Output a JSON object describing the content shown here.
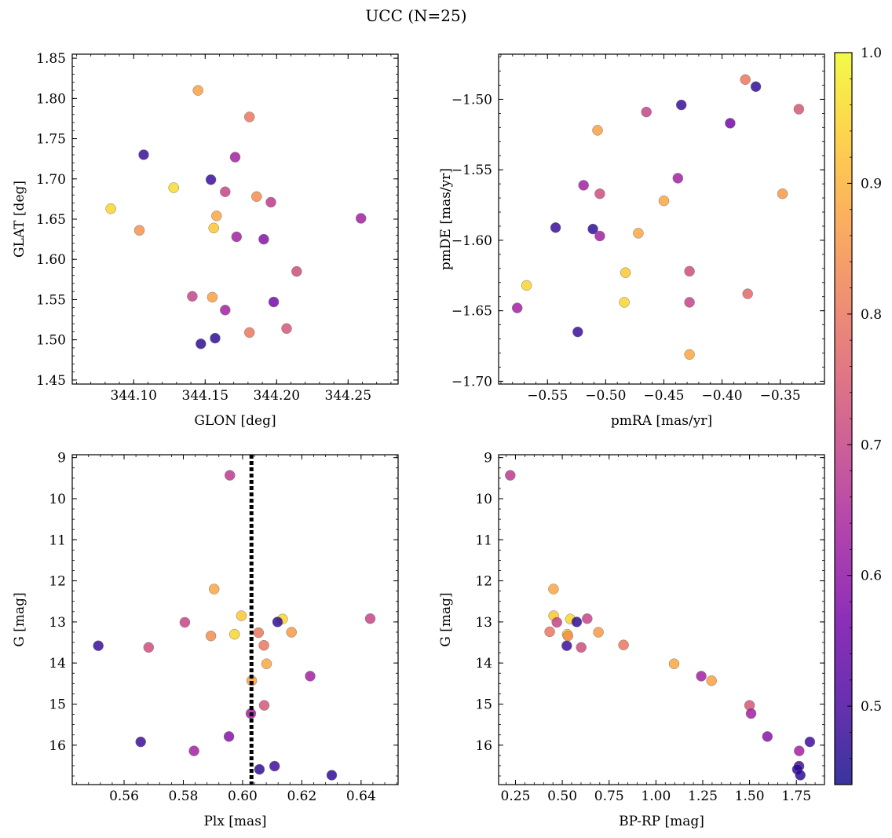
{
  "figure": {
    "title": "UCC (N=25)"
  },
  "colorbar": {
    "cmap": "plasma",
    "vmin": 0.44,
    "vmax": 1.0,
    "ticks": [
      0.5,
      0.6,
      0.7,
      0.8,
      0.9,
      1.0
    ],
    "tick_labels": [
      "0.5",
      "0.6",
      "0.7",
      "0.8",
      "0.9",
      "1.0"
    ],
    "colors": [
      "#0d0887",
      "#46039f",
      "#7201a8",
      "#9c179e",
      "#bd3786",
      "#d8576b",
      "#ed7953",
      "#fb9f3a",
      "#fdca26",
      "#f0f921"
    ]
  },
  "chart_data": [
    {
      "type": "scatter",
      "xlabel": "GLON [deg]",
      "ylabel": "GLAT [deg]",
      "xlim": [
        344.057,
        344.285
      ],
      "ylim": [
        1.445,
        1.855
      ],
      "xticks": [
        344.1,
        344.15,
        344.2,
        344.25
      ],
      "xtick_labels": [
        "344.10",
        "344.15",
        "344.20",
        "344.25"
      ],
      "yticks": [
        1.45,
        1.5,
        1.55,
        1.6,
        1.65,
        1.7,
        1.75,
        1.8,
        1.85
      ],
      "ytick_labels": [
        "1.45",
        "1.50",
        "1.55",
        "1.60",
        "1.65",
        "1.70",
        "1.75",
        "1.80",
        "1.85"
      ],
      "invert_y": false,
      "grid": false,
      "points": [
        {
          "x": 344.145,
          "y": 1.81,
          "c": 0.87
        },
        {
          "x": 344.181,
          "y": 1.777,
          "c": 0.8
        },
        {
          "x": 344.107,
          "y": 1.73,
          "c": 0.48
        },
        {
          "x": 344.171,
          "y": 1.727,
          "c": 0.63
        },
        {
          "x": 344.154,
          "y": 1.699,
          "c": 0.48
        },
        {
          "x": 344.128,
          "y": 1.689,
          "c": 0.96
        },
        {
          "x": 344.164,
          "y": 1.684,
          "c": 0.7
        },
        {
          "x": 344.186,
          "y": 1.678,
          "c": 0.84
        },
        {
          "x": 344.196,
          "y": 1.671,
          "c": 0.68
        },
        {
          "x": 344.084,
          "y": 1.663,
          "c": 0.95
        },
        {
          "x": 344.158,
          "y": 1.654,
          "c": 0.88
        },
        {
          "x": 344.259,
          "y": 1.651,
          "c": 0.63
        },
        {
          "x": 344.156,
          "y": 1.639,
          "c": 0.93
        },
        {
          "x": 344.104,
          "y": 1.636,
          "c": 0.85
        },
        {
          "x": 344.172,
          "y": 1.628,
          "c": 0.63
        },
        {
          "x": 344.191,
          "y": 1.625,
          "c": 0.59
        },
        {
          "x": 344.214,
          "y": 1.585,
          "c": 0.72
        },
        {
          "x": 344.141,
          "y": 1.554,
          "c": 0.7
        },
        {
          "x": 344.155,
          "y": 1.553,
          "c": 0.87
        },
        {
          "x": 344.198,
          "y": 1.547,
          "c": 0.56
        },
        {
          "x": 344.164,
          "y": 1.537,
          "c": 0.63
        },
        {
          "x": 344.207,
          "y": 1.514,
          "c": 0.74
        },
        {
          "x": 344.181,
          "y": 1.509,
          "c": 0.8
        },
        {
          "x": 344.157,
          "y": 1.502,
          "c": 0.47
        },
        {
          "x": 344.147,
          "y": 1.495,
          "c": 0.47
        }
      ]
    },
    {
      "type": "scatter",
      "xlabel": "pmRA [mas/yr]",
      "ylabel": "pmDE [mas/yr]",
      "xlim": [
        -0.592,
        -0.312
      ],
      "ylim": [
        -1.702,
        -1.468
      ],
      "xticks": [
        -0.55,
        -0.5,
        -0.45,
        -0.4,
        -0.35
      ],
      "xtick_labels": [
        "−0.55",
        "−0.50",
        "−0.45",
        "−0.40",
        "−0.35"
      ],
      "yticks": [
        -1.7,
        -1.65,
        -1.6,
        -1.55,
        -1.5
      ],
      "ytick_labels": [
        "−1.70",
        "−1.65",
        "−1.60",
        "−1.55",
        "−1.50"
      ],
      "invert_y": false,
      "grid": false,
      "points": [
        {
          "x": -0.38,
          "y": -1.486,
          "c": 0.8
        },
        {
          "x": -0.371,
          "y": -1.491,
          "c": 0.47
        },
        {
          "x": -0.435,
          "y": -1.504,
          "c": 0.48
        },
        {
          "x": -0.334,
          "y": -1.507,
          "c": 0.74
        },
        {
          "x": -0.465,
          "y": -1.509,
          "c": 0.7
        },
        {
          "x": -0.393,
          "y": -1.517,
          "c": 0.56
        },
        {
          "x": -0.507,
          "y": -1.522,
          "c": 0.87
        },
        {
          "x": -0.438,
          "y": -1.556,
          "c": 0.63
        },
        {
          "x": -0.519,
          "y": -1.561,
          "c": 0.63
        },
        {
          "x": -0.505,
          "y": -1.567,
          "c": 0.72
        },
        {
          "x": -0.348,
          "y": -1.567,
          "c": 0.86
        },
        {
          "x": -0.45,
          "y": -1.572,
          "c": 0.88
        },
        {
          "x": -0.543,
          "y": -1.591,
          "c": 0.48
        },
        {
          "x": -0.511,
          "y": -1.592,
          "c": 0.47
        },
        {
          "x": -0.472,
          "y": -1.595,
          "c": 0.88
        },
        {
          "x": -0.505,
          "y": -1.597,
          "c": 0.63
        },
        {
          "x": -0.483,
          "y": -1.623,
          "c": 0.93
        },
        {
          "x": -0.428,
          "y": -1.622,
          "c": 0.72
        },
        {
          "x": -0.568,
          "y": -1.632,
          "c": 0.95
        },
        {
          "x": -0.378,
          "y": -1.638,
          "c": 0.77
        },
        {
          "x": -0.484,
          "y": -1.644,
          "c": 0.95
        },
        {
          "x": -0.428,
          "y": -1.644,
          "c": 0.7
        },
        {
          "x": -0.576,
          "y": -1.648,
          "c": 0.63
        },
        {
          "x": -0.524,
          "y": -1.665,
          "c": 0.48
        },
        {
          "x": -0.428,
          "y": -1.681,
          "c": 0.88
        }
      ]
    },
    {
      "type": "scatter",
      "xlabel": "Plx [mas]",
      "ylabel": "G [mag]",
      "xlim": [
        0.5425,
        0.6525
      ],
      "ylim": [
        16.96,
        8.93
      ],
      "xticks": [
        0.56,
        0.58,
        0.6,
        0.62,
        0.64
      ],
      "xtick_labels": [
        "0.56",
        "0.58",
        "0.60",
        "0.62",
        "0.64"
      ],
      "yticks": [
        9,
        10,
        11,
        12,
        13,
        14,
        15,
        16
      ],
      "ytick_labels": [
        "9",
        "10",
        "11",
        "12",
        "13",
        "14",
        "15",
        "16"
      ],
      "invert_y": true,
      "grid": false,
      "vline": {
        "x": 0.603,
        "style": "dotted"
      },
      "points": [
        {
          "x": 0.5957,
          "y": 9.43,
          "c": 0.68
        },
        {
          "x": 0.5904,
          "y": 12.2,
          "c": 0.88
        },
        {
          "x": 0.5996,
          "y": 12.85,
          "c": 0.93
        },
        {
          "x": 0.6135,
          "y": 12.93,
          "c": 0.95
        },
        {
          "x": 0.6431,
          "y": 12.92,
          "c": 0.7
        },
        {
          "x": 0.5805,
          "y": 13.01,
          "c": 0.7
        },
        {
          "x": 0.6118,
          "y": 13.0,
          "c": 0.47
        },
        {
          "x": 0.5893,
          "y": 13.34,
          "c": 0.84
        },
        {
          "x": 0.5973,
          "y": 13.3,
          "c": 0.95
        },
        {
          "x": 0.6054,
          "y": 13.26,
          "c": 0.8
        },
        {
          "x": 0.6165,
          "y": 13.25,
          "c": 0.86
        },
        {
          "x": 0.5513,
          "y": 13.58,
          "c": 0.48
        },
        {
          "x": 0.5683,
          "y": 13.62,
          "c": 0.72
        },
        {
          "x": 0.6072,
          "y": 13.57,
          "c": 0.8
        },
        {
          "x": 0.6081,
          "y": 14.02,
          "c": 0.88
        },
        {
          "x": 0.6228,
          "y": 14.32,
          "c": 0.63
        },
        {
          "x": 0.6031,
          "y": 14.43,
          "c": 0.87
        },
        {
          "x": 0.6073,
          "y": 15.03,
          "c": 0.74
        },
        {
          "x": 0.6028,
          "y": 15.23,
          "c": 0.63
        },
        {
          "x": 0.5954,
          "y": 15.79,
          "c": 0.59
        },
        {
          "x": 0.5656,
          "y": 15.92,
          "c": 0.49
        },
        {
          "x": 0.5836,
          "y": 16.14,
          "c": 0.63
        },
        {
          "x": 0.6108,
          "y": 16.51,
          "c": 0.49
        },
        {
          "x": 0.6057,
          "y": 16.59,
          "c": 0.47
        },
        {
          "x": 0.6301,
          "y": 16.73,
          "c": 0.47
        }
      ]
    },
    {
      "type": "scatter",
      "xlabel": "BP-RP [mag]",
      "ylabel": "G [mag]",
      "xlim": [
        0.16,
        1.9
      ],
      "ylim": [
        16.96,
        8.93
      ],
      "xticks": [
        0.25,
        0.5,
        0.75,
        1.0,
        1.25,
        1.5,
        1.75
      ],
      "xtick_labels": [
        "0.25",
        "0.50",
        "0.75",
        "1.00",
        "1.25",
        "1.50",
        "1.75"
      ],
      "yticks": [
        9,
        10,
        11,
        12,
        13,
        14,
        15,
        16
      ],
      "ytick_labels": [
        "9",
        "10",
        "11",
        "12",
        "13",
        "14",
        "15",
        "16"
      ],
      "invert_y": true,
      "grid": false,
      "points": [
        {
          "x": 0.222,
          "y": 9.43,
          "c": 0.68
        },
        {
          "x": 0.453,
          "y": 12.2,
          "c": 0.88
        },
        {
          "x": 0.454,
          "y": 12.85,
          "c": 0.93
        },
        {
          "x": 0.543,
          "y": 12.93,
          "c": 0.95
        },
        {
          "x": 0.633,
          "y": 12.92,
          "c": 0.7
        },
        {
          "x": 0.471,
          "y": 13.01,
          "c": 0.7
        },
        {
          "x": 0.577,
          "y": 13.0,
          "c": 0.47
        },
        {
          "x": 0.433,
          "y": 13.24,
          "c": 0.8
        },
        {
          "x": 0.527,
          "y": 13.3,
          "c": 0.95
        },
        {
          "x": 0.53,
          "y": 13.34,
          "c": 0.84
        },
        {
          "x": 0.693,
          "y": 13.25,
          "c": 0.86
        },
        {
          "x": 0.524,
          "y": 13.58,
          "c": 0.48
        },
        {
          "x": 0.601,
          "y": 13.62,
          "c": 0.72
        },
        {
          "x": 0.827,
          "y": 13.56,
          "c": 0.8
        },
        {
          "x": 1.097,
          "y": 14.02,
          "c": 0.88
        },
        {
          "x": 1.242,
          "y": 14.32,
          "c": 0.63
        },
        {
          "x": 1.297,
          "y": 14.43,
          "c": 0.87
        },
        {
          "x": 1.5,
          "y": 15.03,
          "c": 0.74
        },
        {
          "x": 1.508,
          "y": 15.23,
          "c": 0.63
        },
        {
          "x": 1.595,
          "y": 15.79,
          "c": 0.59
        },
        {
          "x": 1.822,
          "y": 15.92,
          "c": 0.49
        },
        {
          "x": 1.765,
          "y": 16.14,
          "c": 0.63
        },
        {
          "x": 1.764,
          "y": 16.51,
          "c": 0.49
        },
        {
          "x": 1.755,
          "y": 16.59,
          "c": 0.47
        },
        {
          "x": 1.771,
          "y": 16.73,
          "c": 0.47
        }
      ]
    }
  ]
}
